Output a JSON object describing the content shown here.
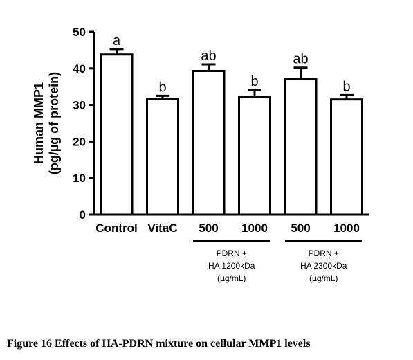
{
  "caption": "Figure 16 Effects of HA-PDRN mixture on cellular MMP1 levels",
  "chart_data": {
    "type": "bar",
    "categories": [
      "Control",
      "VitaC",
      "500",
      "1000",
      "500",
      "1000"
    ],
    "values": [
      43.8,
      31.7,
      39.3,
      32.1,
      37.2,
      31.5
    ],
    "errors": [
      1.5,
      0.8,
      1.8,
      2.0,
      3.0,
      1.2
    ],
    "significance": [
      "a",
      "b",
      "ab",
      "b",
      "ab",
      "b"
    ],
    "ylabel_line1": "Human MMP1",
    "ylabel_line2": "(pg/µg of protein)",
    "ylim": [
      0,
      50
    ],
    "yticks": [
      0,
      10,
      20,
      30,
      40,
      50
    ],
    "groups": [
      {
        "lines": [
          "PDRN +",
          "HA 1200kDa",
          "(µg/mL)"
        ],
        "categories": [
          2,
          3
        ]
      },
      {
        "lines": [
          "PDRN +",
          "HA 2300kDa",
          "(µg/mL)"
        ],
        "categories": [
          4,
          5
        ]
      }
    ],
    "bar_fill": "#ffffff",
    "bar_stroke": "#000000"
  }
}
